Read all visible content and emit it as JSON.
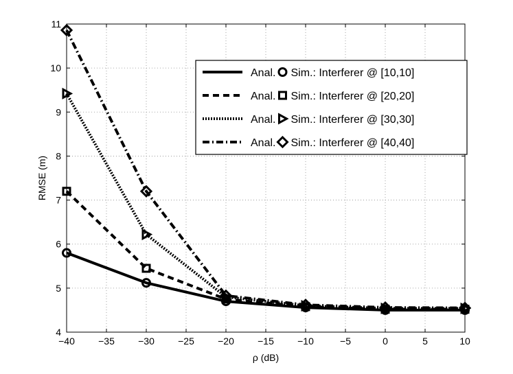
{
  "chart_data": {
    "type": "line",
    "title": "",
    "xlabel": "ρ (dB)",
    "ylabel": "RMSE (m)",
    "xlim": [
      -40,
      10
    ],
    "ylim": [
      4,
      11
    ],
    "grid": true,
    "x": [
      -40,
      -30,
      -20,
      -10,
      0,
      10
    ],
    "xticks": [
      "−40",
      "−35",
      "−30",
      "−25",
      "−20",
      "−15",
      "−10",
      "−5",
      "0",
      "5",
      "10"
    ],
    "yticks": [
      "4",
      "5",
      "6",
      "7",
      "8",
      "9",
      "10",
      "11"
    ],
    "legend_position": "top-right",
    "series": [
      {
        "name": "Interferer @ [10,10]",
        "anal_label": "Anal.",
        "sim_label": "Sim.: Interferer @ [10,10]",
        "line_style": "solid",
        "marker": "circle",
        "values": [
          5.8,
          5.12,
          4.7,
          4.56,
          4.5,
          4.5
        ]
      },
      {
        "name": "Interferer @ [20,20]",
        "anal_label": "Anal.",
        "sim_label": "Sim.: Interferer @ [20,20]",
        "line_style": "dashed",
        "marker": "square",
        "values": [
          7.2,
          5.45,
          4.75,
          4.58,
          4.52,
          4.52
        ]
      },
      {
        "name": "Interferer @ [30,30]",
        "anal_label": "Anal.",
        "sim_label": "Sim.: Interferer @ [30,30]",
        "line_style": "dotted",
        "marker": "triangle-right",
        "values": [
          9.42,
          6.22,
          4.8,
          4.6,
          4.54,
          4.54
        ]
      },
      {
        "name": "Interferer @ [40,40]",
        "anal_label": "Anal.",
        "sim_label": "Sim.: Interferer @ [40,40]",
        "line_style": "dashdot",
        "marker": "diamond",
        "values": [
          10.86,
          7.2,
          4.83,
          4.62,
          4.56,
          4.55
        ]
      }
    ]
  }
}
